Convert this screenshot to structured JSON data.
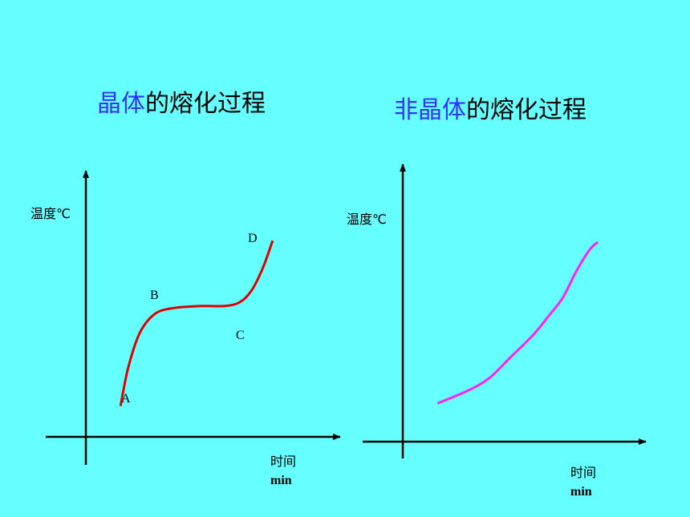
{
  "titles": {
    "left": {
      "highlight": "晶体",
      "rest": "的熔化过程"
    },
    "right": {
      "highlight": "非晶体",
      "rest": "的熔化过程"
    }
  },
  "colors": {
    "background": "#66FFFF",
    "highlight": "#3333FF",
    "crystal_curve": "#E00000",
    "amorphous_curve": "#FF22FF"
  },
  "chart_data": [
    {
      "type": "line",
      "title": "晶体的熔化过程",
      "ylabel": "温度℃",
      "xlabel_line1": "时间",
      "xlabel_line2": "min",
      "point_labels": [
        "A",
        "B",
        "C",
        "D"
      ],
      "series": [
        {
          "color": "#E00000",
          "points": [
            [
              0.9,
              0.8
            ],
            [
              1.1,
              1.8
            ],
            [
              1.4,
              2.7
            ],
            [
              1.8,
              3.2
            ],
            [
              2.3,
              3.35
            ],
            [
              3.0,
              3.4
            ],
            [
              3.6,
              3.4
            ],
            [
              4.0,
              3.5
            ],
            [
              4.3,
              3.8
            ],
            [
              4.6,
              4.4
            ],
            [
              4.85,
              5.1
            ]
          ]
        }
      ],
      "xlim": [
        0,
        6.5
      ],
      "ylim": [
        0,
        6.5
      ],
      "grid": false
    },
    {
      "type": "line",
      "title": "非晶体的熔化过程",
      "ylabel": "温度℃",
      "xlabel_line1": "时间",
      "xlabel_line2": "min",
      "series": [
        {
          "color": "#FF22FF",
          "points": [
            [
              0.8,
              0.9
            ],
            [
              1.5,
              1.2
            ],
            [
              2.0,
              1.5
            ],
            [
              2.5,
              2.0
            ],
            [
              3.0,
              2.5
            ],
            [
              3.4,
              3.0
            ],
            [
              3.7,
              3.4
            ],
            [
              4.0,
              4.0
            ],
            [
              4.3,
              4.5
            ],
            [
              4.5,
              4.7
            ]
          ]
        }
      ],
      "xlim": [
        0,
        6.5
      ],
      "ylim": [
        0,
        6.5
      ],
      "grid": false
    }
  ]
}
